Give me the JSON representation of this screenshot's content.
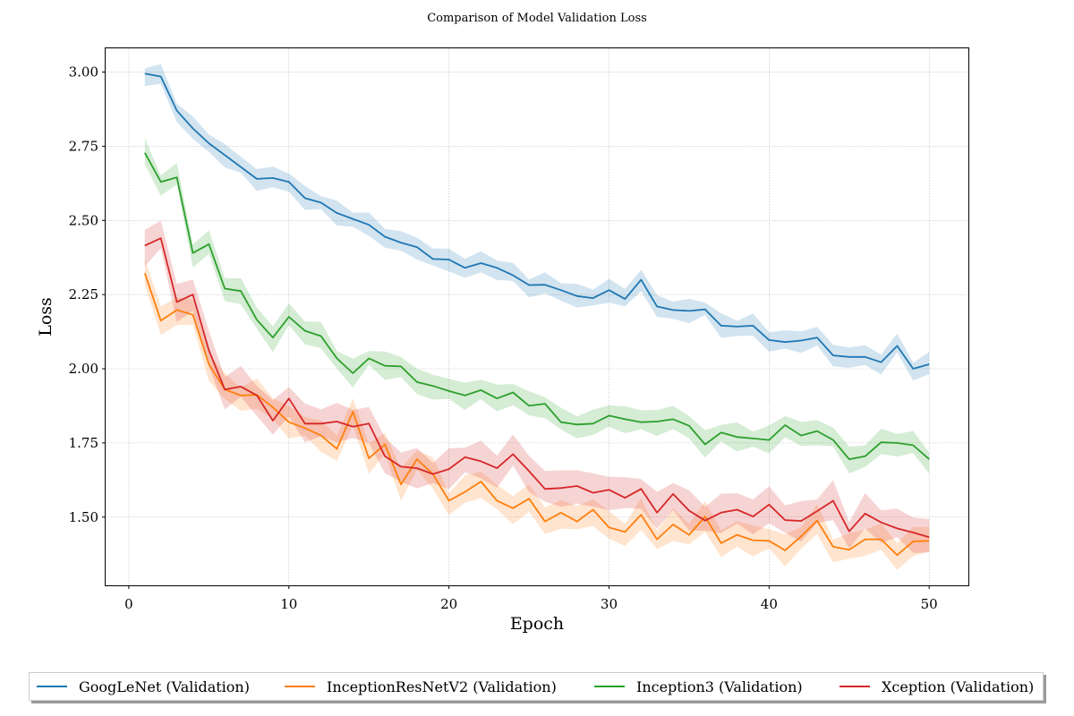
{
  "chart_data": {
    "type": "line",
    "title": "Comparison of Model Validation Loss",
    "xlabel": "Epoch",
    "ylabel": "Loss",
    "xlim": [
      -1.45,
      52.45
    ],
    "ylim": [
      1.27,
      3.08
    ],
    "x_ticks": [
      0,
      10,
      20,
      30,
      40,
      50
    ],
    "y_ticks": [
      1.5,
      1.75,
      2.0,
      2.25,
      2.5,
      2.75,
      3.0
    ],
    "x_tick_labels": [
      "0",
      "10",
      "20",
      "30",
      "40",
      "50"
    ],
    "y_tick_labels": [
      "1.50",
      "1.75",
      "2.00",
      "2.25",
      "2.50",
      "2.75",
      "3.00"
    ],
    "grid": true,
    "legend_position": "bottom-center",
    "x": [
      1,
      2,
      3,
      4,
      5,
      6,
      7,
      8,
      9,
      10,
      11,
      12,
      13,
      14,
      15,
      16,
      17,
      18,
      19,
      20,
      21,
      22,
      23,
      24,
      25,
      26,
      27,
      28,
      29,
      30,
      31,
      32,
      33,
      34,
      35,
      36,
      37,
      38,
      39,
      40,
      41,
      42,
      43,
      44,
      45,
      46,
      47,
      48,
      49,
      50
    ],
    "series": [
      {
        "name": "GoogLeNet (Validation)",
        "color": "#1f77b4",
        "values": [
          2.995,
          2.985,
          2.87,
          2.81,
          2.76,
          2.72,
          2.68,
          2.64,
          2.643,
          2.63,
          2.575,
          2.56,
          2.525,
          2.505,
          2.485,
          2.445,
          2.425,
          2.41,
          2.37,
          2.368,
          2.34,
          2.356,
          2.34,
          2.315,
          2.282,
          2.283,
          2.265,
          2.245,
          2.238,
          2.265,
          2.235,
          2.3,
          2.21,
          2.198,
          2.195,
          2.2,
          2.145,
          2.142,
          2.145,
          2.097,
          2.09,
          2.095,
          2.105,
          2.045,
          2.04,
          2.04,
          2.022,
          2.077,
          2.0,
          2.015
        ],
        "band": 0.03
      },
      {
        "name": "InceptionResNetV2 (Validation)",
        "color": "#ff7f0e",
        "values": [
          2.322,
          2.162,
          2.198,
          2.182,
          2.015,
          1.93,
          1.91,
          1.912,
          1.87,
          1.82,
          1.8,
          1.775,
          1.73,
          1.855,
          1.698,
          1.745,
          1.61,
          1.695,
          1.645,
          1.555,
          1.585,
          1.62,
          1.555,
          1.53,
          1.562,
          1.485,
          1.515,
          1.485,
          1.525,
          1.465,
          1.45,
          1.508,
          1.425,
          1.475,
          1.44,
          1.502,
          1.412,
          1.44,
          1.422,
          1.42,
          1.388,
          1.435,
          1.488,
          1.4,
          1.39,
          1.425,
          1.425,
          1.372,
          1.418,
          1.42
        ],
        "band": 0.04
      },
      {
        "name": "Inception3 (Validation)",
        "color": "#2ca02c",
        "values": [
          2.728,
          2.63,
          2.645,
          2.39,
          2.42,
          2.27,
          2.262,
          2.165,
          2.105,
          2.175,
          2.128,
          2.11,
          2.035,
          1.985,
          2.035,
          2.01,
          2.008,
          1.955,
          1.942,
          1.925,
          1.91,
          1.928,
          1.9,
          1.92,
          1.875,
          1.882,
          1.82,
          1.812,
          1.815,
          1.842,
          1.83,
          1.82,
          1.822,
          1.83,
          1.808,
          1.745,
          1.785,
          1.77,
          1.765,
          1.76,
          1.81,
          1.775,
          1.79,
          1.76,
          1.695,
          1.705,
          1.752,
          1.75,
          1.742,
          1.695
        ],
        "band": 0.035
      },
      {
        "name": "Xception (Validation)",
        "color": "#d62728",
        "values": [
          2.415,
          2.44,
          2.225,
          2.25,
          2.062,
          1.93,
          1.94,
          1.91,
          1.825,
          1.9,
          1.815,
          1.815,
          1.822,
          1.805,
          1.815,
          1.705,
          1.67,
          1.665,
          1.645,
          1.662,
          1.702,
          1.688,
          1.665,
          1.712,
          1.655,
          1.595,
          1.598,
          1.605,
          1.582,
          1.592,
          1.565,
          1.595,
          1.515,
          1.578,
          1.522,
          1.488,
          1.515,
          1.525,
          1.502,
          1.542,
          1.49,
          1.487,
          1.52,
          1.555,
          1.452,
          1.512,
          1.482,
          1.462,
          1.448,
          1.432
        ],
        "band": 0.05
      }
    ]
  }
}
